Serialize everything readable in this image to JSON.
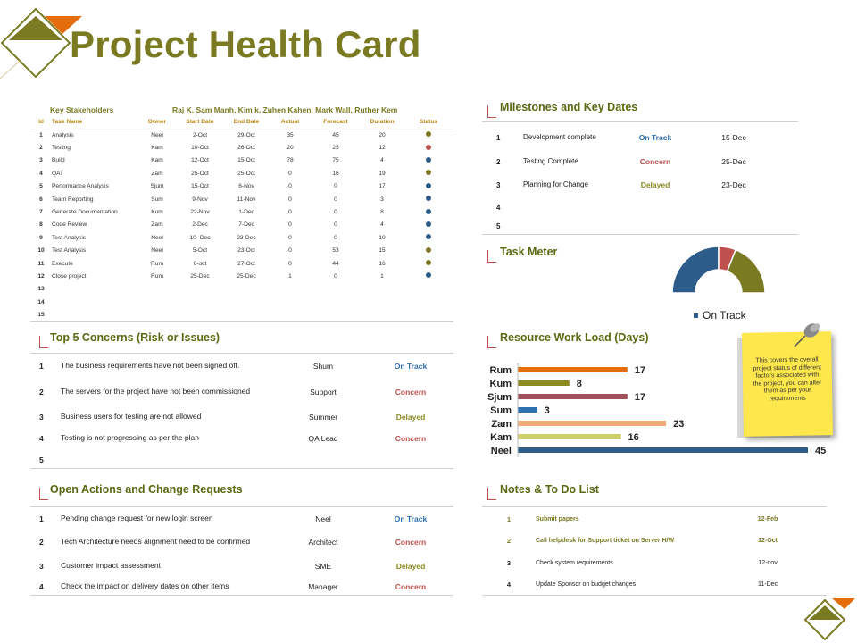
{
  "title": "Project Health Card",
  "stakeholders": {
    "label": "Key Stakeholders",
    "names": "Raj K, Sam Manh, Kim k, Zuhen Kahen, Mark Wall, Ruther Kem"
  },
  "task_table": {
    "headers": [
      "Id",
      "Task Name",
      "Owner",
      "Start Date",
      "End Date",
      "Actual",
      "Forecast",
      "Duration",
      "Status"
    ],
    "rows": [
      {
        "id": "1",
        "task": "Analysis",
        "owner": "Neel",
        "start": "2-Oct",
        "end": "29-Oct",
        "actual": "35",
        "forecast": "45",
        "duration": "20",
        "status_color": "#7a7a22"
      },
      {
        "id": "2",
        "task": "Testing",
        "owner": "Kam",
        "start": "10-Oct",
        "end": "26-Oct",
        "actual": "20",
        "forecast": "25",
        "duration": "12",
        "status_color": "#c0504d"
      },
      {
        "id": "3",
        "task": "Build",
        "owner": "Kam",
        "start": "12-Oct",
        "end": "15-Oct",
        "actual": "78",
        "forecast": "75",
        "duration": "4",
        "status_color": "#2e5c8a"
      },
      {
        "id": "4",
        "task": "QAT",
        "owner": "Zam",
        "start": "25-Oct",
        "end": "25-Oct",
        "actual": "0",
        "forecast": "16",
        "duration": "19",
        "status_color": "#7a7a22"
      },
      {
        "id": "5",
        "task": "Performance Analysis",
        "owner": "Sjum",
        "start": "15-Oct",
        "end": "6-Nov",
        "actual": "0",
        "forecast": "0",
        "duration": "17",
        "status_color": "#2e5c8a"
      },
      {
        "id": "6",
        "task": "Team Reporting",
        "owner": "Sum",
        "start": "9-Nov",
        "end": "11-Nov",
        "actual": "0",
        "forecast": "0",
        "duration": "3",
        "status_color": "#2e5c8a"
      },
      {
        "id": "7",
        "task": "Generate Documentation",
        "owner": "Kum",
        "start": "22-Nov",
        "end": "1-Dec",
        "actual": "0",
        "forecast": "0",
        "duration": "8",
        "status_color": "#2e5c8a"
      },
      {
        "id": "8",
        "task": "Code Review",
        "owner": "Zam",
        "start": "2-Dec",
        "end": "7-Dec",
        "actual": "0",
        "forecast": "0",
        "duration": "4",
        "status_color": "#2e5c8a"
      },
      {
        "id": "9",
        "task": "Test Analysis",
        "owner": "Neel",
        "start": "10- Dec",
        "end": "23-Dec",
        "actual": "0",
        "forecast": "0",
        "duration": "10",
        "status_color": "#2e5c8a"
      },
      {
        "id": "10",
        "task": "Test Analysis",
        "owner": "Neel",
        "start": "5-Oct",
        "end": "23-Oct",
        "actual": "0",
        "forecast": "53",
        "duration": "15",
        "status_color": "#7a7a22"
      },
      {
        "id": "11",
        "task": "Execute",
        "owner": "Rum",
        "start": "6-oct",
        "end": "27-Oct",
        "actual": "0",
        "forecast": "44",
        "duration": "16",
        "status_color": "#7a7a22"
      },
      {
        "id": "12",
        "task": "Close project",
        "owner": "Rum",
        "start": "25-Dec",
        "end": "25-Dec",
        "actual": "1",
        "forecast": "0",
        "duration": "1",
        "status_color": "#2e5c8a"
      },
      {
        "id": "13",
        "task": "",
        "owner": "",
        "start": "",
        "end": "",
        "actual": "",
        "forecast": "",
        "duration": "",
        "status_color": ""
      },
      {
        "id": "14",
        "task": "",
        "owner": "",
        "start": "",
        "end": "",
        "actual": "",
        "forecast": "",
        "duration": "",
        "status_color": ""
      },
      {
        "id": "15",
        "task": "",
        "owner": "",
        "start": "",
        "end": "",
        "actual": "",
        "forecast": "",
        "duration": "",
        "status_color": ""
      }
    ]
  },
  "milestones": {
    "heading": "Milestones and Key Dates",
    "rows": [
      {
        "num": "1",
        "name": "Development complete",
        "status": "On Track",
        "date": "15-Dec"
      },
      {
        "num": "2",
        "name": "Testing Complete",
        "status": "Concern",
        "date": "25-Dec"
      },
      {
        "num": "3",
        "name": "Planning  for Change",
        "status": "Delayed",
        "date": "23-Dec"
      },
      {
        "num": "4",
        "name": "",
        "status": "",
        "date": ""
      },
      {
        "num": "5",
        "name": "",
        "status": "",
        "date": ""
      }
    ]
  },
  "task_meter": {
    "heading": "Task Meter",
    "legend": "On Track"
  },
  "concerns": {
    "heading": "Top 5 Concerns (Risk or Issues)",
    "rows": [
      {
        "num": "1",
        "text": "The business requirements have not been signed off.",
        "owner": "Shum",
        "status": "On Track"
      },
      {
        "num": "2",
        "text": "The servers for the project have not been commissioned",
        "owner": "Support",
        "status": "Concern"
      },
      {
        "num": "3",
        "text": "Business users for testing are not allowed",
        "owner": "Summer",
        "status": "Delayed"
      },
      {
        "num": "4",
        "text": "Testing is not progressing as per the plan",
        "owner": "QA Lead",
        "status": "Concern"
      },
      {
        "num": "5",
        "text": "",
        "owner": "",
        "status": ""
      }
    ]
  },
  "workload": {
    "heading": "Resource Work Load (Days)"
  },
  "sticky_note": {
    "text": "This covers the overall project status of different factors associated with the project, you can alter them as per your requirements"
  },
  "actions": {
    "heading": "Open Actions and Change Requests",
    "rows": [
      {
        "num": "1",
        "text": "Pending change request for new login screen",
        "owner": "Neel",
        "status": "On Track"
      },
      {
        "num": "2",
        "text": "Tech Architecture needs alignment need to be confirmed",
        "owner": "Architect",
        "status": "Concern"
      },
      {
        "num": "3",
        "text": "Customer impact assessment",
        "owner": "SME",
        "status": "Delayed"
      },
      {
        "num": "4",
        "text": "Check the impact on delivery dates on other items",
        "owner": "Manager",
        "status": "Concern"
      }
    ]
  },
  "notes": {
    "heading": "Notes & To Do List",
    "rows": [
      {
        "num": "1",
        "text": "Submit papers",
        "date": "12-Feb"
      },
      {
        "num": "2",
        "text": "Call helpdesk for Support ticket on Server H/W",
        "date": "12-Oct"
      },
      {
        "num": "3",
        "text": "Check system requirements",
        "date": "12-nov"
      },
      {
        "num": "4",
        "text": "Update Sponsor on budget changes",
        "date": "11-Dec"
      }
    ]
  },
  "colors": {
    "olive": "#7a7a22",
    "orange": "#e46c0a",
    "blue": "#2e5c8a",
    "red": "#c0504d"
  },
  "chart_data": [
    {
      "type": "pie",
      "title": "Task Meter",
      "style": "semi-donut",
      "slices": [
        {
          "label": "On Track",
          "value": 50,
          "color": "#2e5c8a"
        },
        {
          "label": "",
          "value": 12,
          "color": "#c0504d"
        },
        {
          "label": "",
          "value": 38,
          "color": "#7a7a22"
        }
      ],
      "legend": "bottom"
    },
    {
      "type": "bar",
      "orientation": "horizontal",
      "title": "Resource Work Load (Days)",
      "categories": [
        "Rum",
        "Kum",
        "Sjum",
        "Sum",
        "Zam",
        "Kam",
        "Neel"
      ],
      "values": [
        17,
        8,
        17,
        3,
        23,
        16,
        45
      ],
      "colors": [
        "#e46c0a",
        "#8b8b22",
        "#a0525a",
        "#2e6fb0",
        "#f2a97a",
        "#cfcf6a",
        "#2e5c8a"
      ],
      "xlim": [
        0,
        45
      ],
      "grid": false
    }
  ]
}
